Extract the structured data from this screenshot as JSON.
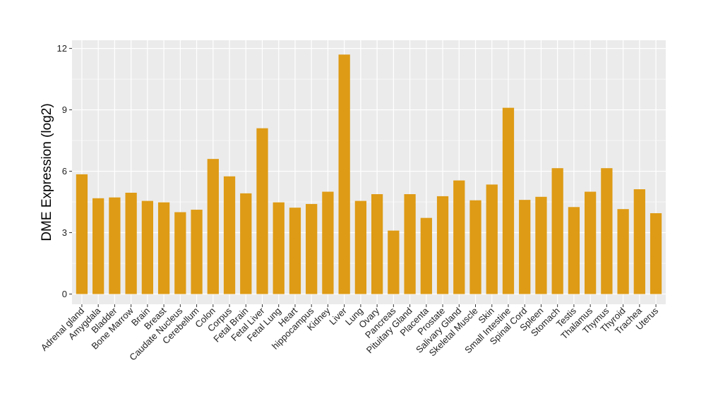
{
  "chart_data": {
    "type": "bar",
    "title": "",
    "xlabel": "",
    "ylabel": "DME Expression (log2)",
    "ylim": [
      -0.5,
      12.4
    ],
    "yticks": [
      0,
      3,
      6,
      9,
      12
    ],
    "grid": true,
    "legend": "none",
    "colors": {
      "bar": "#DE9B15",
      "panel": "#EBEBEB",
      "grid": "#FFFFFF"
    },
    "categories": [
      "Adrenal gland",
      "Amygdala",
      "Bladder",
      "Bone Marrow",
      "Brain",
      "Breast",
      "Caudate Nucleus",
      "Cerebellum",
      "Colon",
      "Corpus",
      "Fetal Brain",
      "Fetal Liver",
      "Fetal Lung",
      "Heart",
      "hippocampus",
      "Kidney",
      "Liver",
      "Lung",
      "Ovary",
      "Pancreas",
      "Pituitary Gland",
      "Placenta",
      "Prostate",
      "Salivary Gland",
      "Skeletal Muscle",
      "Skin",
      "Small Intestine",
      "Spinal Cord",
      "Spleen",
      "Stomach",
      "Testis",
      "Thalamus",
      "Thymus",
      "Thyroid",
      "Trachea",
      "Uterus"
    ],
    "values": [
      5.85,
      4.68,
      4.72,
      4.95,
      4.55,
      4.48,
      4.0,
      4.12,
      6.6,
      5.75,
      4.92,
      8.1,
      4.48,
      4.22,
      4.4,
      5.0,
      11.7,
      4.55,
      4.88,
      3.1,
      4.88,
      3.72,
      4.78,
      5.55,
      4.58,
      5.35,
      9.1,
      4.6,
      4.75,
      6.15,
      4.25,
      5.0,
      6.15,
      4.15,
      5.12,
      3.95
    ]
  }
}
